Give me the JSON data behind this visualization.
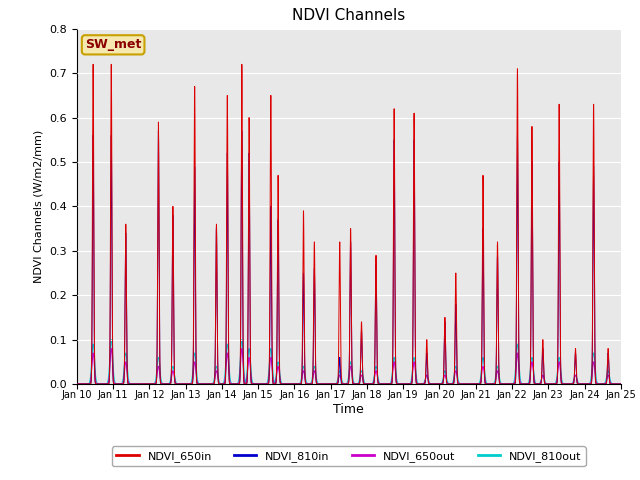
{
  "title": "NDVI Channels",
  "xlabel": "Time",
  "ylabel": "NDVI Channels (W/m2/mm)",
  "ylim": [
    0.0,
    0.8
  ],
  "yticks": [
    0.0,
    0.1,
    0.2,
    0.3,
    0.4,
    0.5,
    0.6,
    0.7,
    0.8
  ],
  "bg_color": "#e8e8e8",
  "legend_labels": [
    "NDVI_650in",
    "NDVI_810in",
    "NDVI_650out",
    "NDVI_810out"
  ],
  "legend_colors": [
    "#dd0000",
    "#0000cc",
    "#cc00cc",
    "#00cccc"
  ],
  "annotation_text": "SW_met",
  "annotation_bg": "#f5e9b0",
  "annotation_border": "#c8a000",
  "figsize": [
    6.4,
    4.8
  ],
  "dpi": 100,
  "spike_sigma": 0.018,
  "peak_times": [
    10.45,
    10.95,
    11.35,
    12.25,
    12.65,
    13.25,
    13.85,
    14.15,
    14.55,
    14.75,
    15.35,
    15.55,
    16.25,
    16.55,
    17.25,
    17.55,
    17.85,
    18.25,
    18.75,
    19.3,
    19.65,
    20.15,
    20.45,
    21.2,
    21.6,
    22.15,
    22.55,
    22.85,
    23.3,
    23.75,
    24.25,
    24.65
  ],
  "peaks_650in": [
    0.72,
    0.72,
    0.36,
    0.59,
    0.4,
    0.67,
    0.36,
    0.65,
    0.72,
    0.6,
    0.65,
    0.47,
    0.39,
    0.32,
    0.32,
    0.35,
    0.14,
    0.29,
    0.62,
    0.61,
    0.1,
    0.15,
    0.25,
    0.47,
    0.32,
    0.71,
    0.58,
    0.1,
    0.63,
    0.08,
    0.63,
    0.08
  ],
  "peaks_810in": [
    0.56,
    0.56,
    0.34,
    0.57,
    0.38,
    0.49,
    0.35,
    0.52,
    0.57,
    0.52,
    0.4,
    0.37,
    0.25,
    0.26,
    0.06,
    0.32,
    0.12,
    0.27,
    0.55,
    0.55,
    0.07,
    0.14,
    0.18,
    0.35,
    0.29,
    0.56,
    0.5,
    0.08,
    0.5,
    0.07,
    0.49,
    0.07
  ],
  "peaks_650out": [
    0.07,
    0.08,
    0.05,
    0.04,
    0.03,
    0.05,
    0.03,
    0.07,
    0.08,
    0.06,
    0.06,
    0.04,
    0.03,
    0.03,
    0.02,
    0.04,
    0.02,
    0.03,
    0.05,
    0.05,
    0.02,
    0.02,
    0.03,
    0.04,
    0.03,
    0.07,
    0.05,
    0.02,
    0.05,
    0.02,
    0.05,
    0.02
  ],
  "peaks_810out": [
    0.09,
    0.1,
    0.07,
    0.06,
    0.04,
    0.07,
    0.04,
    0.09,
    0.1,
    0.08,
    0.08,
    0.05,
    0.04,
    0.04,
    0.03,
    0.05,
    0.03,
    0.04,
    0.06,
    0.06,
    0.02,
    0.03,
    0.04,
    0.06,
    0.04,
    0.09,
    0.06,
    0.02,
    0.06,
    0.02,
    0.07,
    0.03
  ]
}
